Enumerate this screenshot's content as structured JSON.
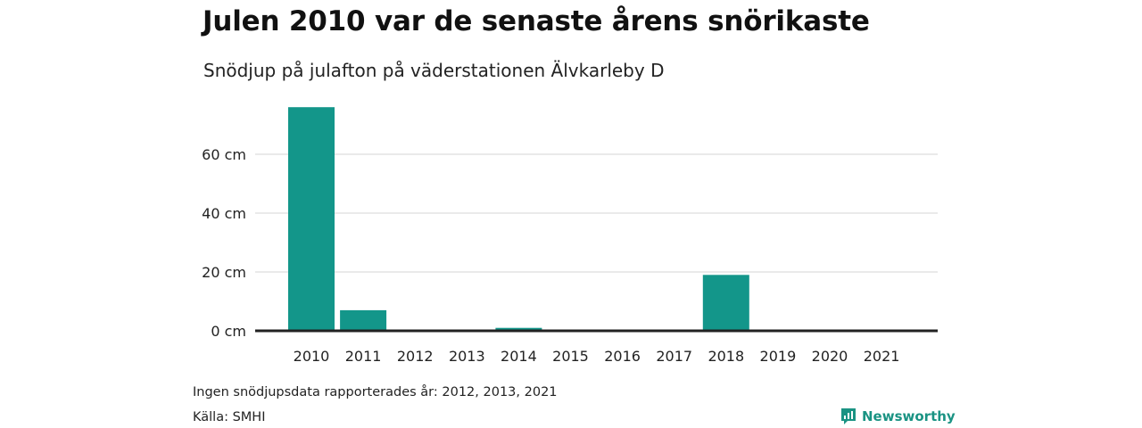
{
  "title": "Julen 2010 var de senaste årens snörikaste",
  "subtitle": "Snödjup på julafton på väderstationen Älvkarleby D",
  "note": "Ingen snödjupsdata rapporterades år: 2012, 2013, 2021",
  "source": "Källa: SMHI",
  "brand": "Newsworthy",
  "colors": {
    "bar": "#13968a",
    "grid": "#dddddd",
    "baseline": "#222222",
    "brand": "#1a9383"
  },
  "chart_data": {
    "type": "bar",
    "categories": [
      "2010",
      "2011",
      "2012",
      "2013",
      "2014",
      "2015",
      "2016",
      "2017",
      "2018",
      "2019",
      "2020",
      "2021"
    ],
    "values": [
      76,
      7,
      null,
      null,
      1,
      0,
      0,
      0,
      19,
      0,
      0,
      null
    ],
    "y_ticks": [
      0,
      20,
      40,
      60
    ],
    "y_tick_labels": [
      "0 cm",
      "20 cm",
      "40 cm",
      "60 cm"
    ],
    "ylim": [
      0,
      80
    ],
    "grid": true,
    "xlabel": "",
    "ylabel": ""
  }
}
